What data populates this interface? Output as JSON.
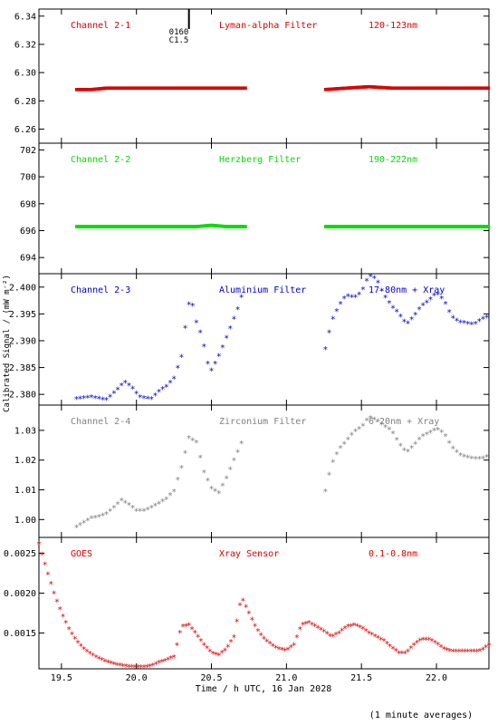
{
  "chart_data": {
    "type": "scatter",
    "x_axis": {
      "label": "Time / h UTC, 16 Jan 2028",
      "range": [
        19.35,
        22.35
      ],
      "ticks": [
        "19.5",
        "20.0",
        "20.5",
        "21.0",
        "21.5",
        "22.0"
      ],
      "tick_values": [
        19.5,
        20.0,
        20.5,
        21.0,
        21.5,
        22.0
      ]
    },
    "ylabel": "Calibrated Signal / (mW m⁻²)",
    "footnote": "(1 minute averages)",
    "grid": false,
    "panels": [
      {
        "channel": "Channel 2-1",
        "filter": "Lyman-alpha Filter",
        "band": "120-123nm",
        "color": "#dd0000",
        "marker": "dot",
        "ylim": [
          6.25,
          6.345
        ],
        "yticks": [
          "6.26",
          "6.28",
          "6.30",
          "6.32",
          "6.34"
        ],
        "ytick_values": [
          6.26,
          6.28,
          6.3,
          6.32,
          6.34
        ],
        "event": {
          "x": 20.35,
          "labels": [
            "0160",
            "C1.5"
          ]
        },
        "series": [
          {
            "x": [
              19.6,
              19.7,
              19.8,
              19.9,
              20.0,
              20.1,
              20.2,
              20.3,
              20.4,
              20.5,
              20.6,
              20.73
            ],
            "y": [
              6.288,
              6.288,
              6.289,
              6.289,
              6.289,
              6.289,
              6.289,
              6.289,
              6.289,
              6.289,
              6.289,
              6.289
            ]
          },
          {
            "x": [
              21.26,
              21.4,
              21.55,
              21.7,
              21.85,
              22.0,
              22.15,
              22.35
            ],
            "y": [
              6.288,
              6.289,
              6.29,
              6.289,
              6.289,
              6.289,
              6.289,
              6.289
            ]
          }
        ]
      },
      {
        "channel": "Channel 2-2",
        "filter": "Herzberg Filter",
        "band": "190-222nm",
        "color": "#00dd00",
        "marker": "dot",
        "ylim": [
          692.8,
          702.5
        ],
        "yticks": [
          "694",
          "696",
          "698",
          "700",
          "702"
        ],
        "ytick_values": [
          694,
          696,
          698,
          700,
          702
        ],
        "series": [
          {
            "x": [
              19.6,
              19.8,
              20.0,
              20.2,
              20.4,
              20.5,
              20.6,
              20.73
            ],
            "y": [
              696.3,
              696.3,
              696.3,
              696.3,
              696.3,
              696.4,
              696.3,
              696.3
            ]
          },
          {
            "x": [
              21.26,
              21.5,
              21.75,
              22.0,
              22.35
            ],
            "y": [
              696.3,
              696.3,
              696.3,
              696.3,
              696.3
            ]
          }
        ]
      },
      {
        "channel": "Channel 2-3",
        "filter": "Aluminium Filter",
        "band": "17-80nm + Xray",
        "color": "#0000cc",
        "marker": "star",
        "ylim": [
          2.378,
          2.4025
        ],
        "yticks": [
          "2.380",
          "2.385",
          "2.390",
          "2.395",
          "2.400"
        ],
        "ytick_values": [
          2.38,
          2.385,
          2.39,
          2.395,
          2.4
        ],
        "series": [
          {
            "x": [
              19.6,
              19.7,
              19.8,
              19.87,
              19.92,
              19.97,
              20.02,
              20.1,
              20.15,
              20.2,
              20.25,
              20.3,
              20.33,
              20.36,
              20.4,
              20.44,
              20.47,
              20.5,
              20.53,
              20.57,
              20.62,
              20.67,
              20.72
            ],
            "y": [
              2.3792,
              2.3795,
              2.379,
              2.3808,
              2.3823,
              2.3813,
              2.3795,
              2.3792,
              2.3805,
              2.3815,
              2.383,
              2.387,
              2.3935,
              2.3985,
              2.3935,
              2.3905,
              2.386,
              2.3845,
              2.386,
              2.3885,
              2.392,
              2.3955,
              2.4
            ]
          },
          {
            "x": [
              21.26,
              21.3,
              21.35,
              21.4,
              21.45,
              21.5,
              21.55,
              21.6,
              21.65,
              21.7,
              21.75,
              21.8,
              21.85,
              21.9,
              21.95,
              22.0,
              22.05,
              22.1,
              22.15,
              22.2,
              22.25,
              22.3,
              22.35
            ],
            "y": [
              2.3885,
              2.3935,
              2.3965,
              2.3985,
              2.398,
              2.399,
              2.4022,
              2.4015,
              2.3985,
              2.3965,
              2.395,
              2.393,
              2.3945,
              2.3965,
              2.3975,
              2.399,
              2.3975,
              2.3945,
              2.3935,
              2.3933,
              2.393,
              2.394,
              2.3945
            ]
          }
        ]
      },
      {
        "channel": "Channel 2-4",
        "filter": "Zirconium Filter",
        "band": "6-20nm + Xray",
        "color": "#808080",
        "marker": "star",
        "ylim": [
          0.994,
          1.0385
        ],
        "yticks": [
          "1.00",
          "1.01",
          "1.02",
          "1.03"
        ],
        "ytick_values": [
          1.0,
          1.01,
          1.02,
          1.03
        ],
        "series": [
          {
            "x": [
              19.6,
              19.65,
              19.7,
              19.75,
              19.8,
              19.85,
              19.9,
              19.95,
              20.0,
              20.05,
              20.1,
              20.15,
              20.2,
              20.25,
              20.3,
              20.35,
              20.4,
              20.45,
              20.5,
              20.55,
              20.6,
              20.65,
              20.72
            ],
            "y": [
              0.9975,
              0.999,
              1.0005,
              1.001,
              1.002,
              1.004,
              1.0065,
              1.005,
              1.003,
              1.003,
              1.004,
              1.0055,
              1.007,
              1.0095,
              1.0175,
              1.0275,
              1.026,
              1.016,
              1.0105,
              1.009,
              1.014,
              1.02,
              1.028
            ]
          },
          {
            "x": [
              21.26,
              21.3,
              21.35,
              21.4,
              21.45,
              21.5,
              21.55,
              21.6,
              21.65,
              21.7,
              21.75,
              21.8,
              21.85,
              21.9,
              21.95,
              22.0,
              22.05,
              22.1,
              22.15,
              22.2,
              22.25,
              22.3,
              22.35
            ],
            "y": [
              1.0095,
              1.0185,
              1.0235,
              1.0265,
              1.0295,
              1.031,
              1.0345,
              1.0335,
              1.0315,
              1.03,
              1.0255,
              1.0225,
              1.025,
              1.028,
              1.029,
              1.0305,
              1.029,
              1.0245,
              1.022,
              1.021,
              1.0205,
              1.0205,
              1.0215
            ]
          }
        ]
      },
      {
        "channel": "GOES",
        "filter": "Xray Sensor",
        "band": "0.1-0.8nm",
        "color": "#dd0000",
        "marker": "star",
        "ylim": [
          0.00105,
          0.0027
        ],
        "yticks": [
          "0.0015",
          "0.0020",
          "0.0025"
        ],
        "ytick_values": [
          0.0015,
          0.002,
          0.0025
        ],
        "series": [
          {
            "x": [
              19.35,
              19.4,
              19.45,
              19.5,
              19.55,
              19.6,
              19.65,
              19.7,
              19.75,
              19.8,
              19.85,
              19.9,
              19.95,
              20.0,
              20.05,
              20.1,
              20.15,
              20.2,
              20.25,
              20.3,
              20.35,
              20.4,
              20.45,
              20.5,
              20.55,
              20.6,
              20.65,
              20.7,
              20.75,
              20.8,
              20.85,
              20.9,
              20.95,
              21.0,
              21.05,
              21.1,
              21.15,
              21.2,
              21.25,
              21.3,
              21.35,
              21.4,
              21.45,
              21.5,
              21.55,
              21.6,
              21.65,
              21.7,
              21.75,
              21.8,
              21.85,
              21.9,
              21.95,
              22.0,
              22.05,
              22.1,
              22.15,
              22.2,
              22.25,
              22.3,
              22.35
            ],
            "y": [
              0.00262,
              0.0023,
              0.002,
              0.00175,
              0.00155,
              0.0014,
              0.0013,
              0.00123,
              0.00118,
              0.00114,
              0.00111,
              0.00109,
              0.00108,
              0.00107,
              0.00107,
              0.00109,
              0.00113,
              0.00116,
              0.0012,
              0.00158,
              0.0016,
              0.00148,
              0.00135,
              0.00125,
              0.00122,
              0.0013,
              0.00145,
              0.00195,
              0.00175,
              0.00155,
              0.00143,
              0.00135,
              0.0013,
              0.00128,
              0.00135,
              0.0016,
              0.00163,
              0.00158,
              0.00152,
              0.00145,
              0.0015,
              0.00158,
              0.0016,
              0.00157,
              0.0015,
              0.00145,
              0.0014,
              0.00132,
              0.00125,
              0.00125,
              0.00135,
              0.00142,
              0.00142,
              0.00137,
              0.0013,
              0.00127,
              0.00127,
              0.00127,
              0.00127,
              0.00128,
              0.00135
            ]
          }
        ]
      }
    ]
  }
}
